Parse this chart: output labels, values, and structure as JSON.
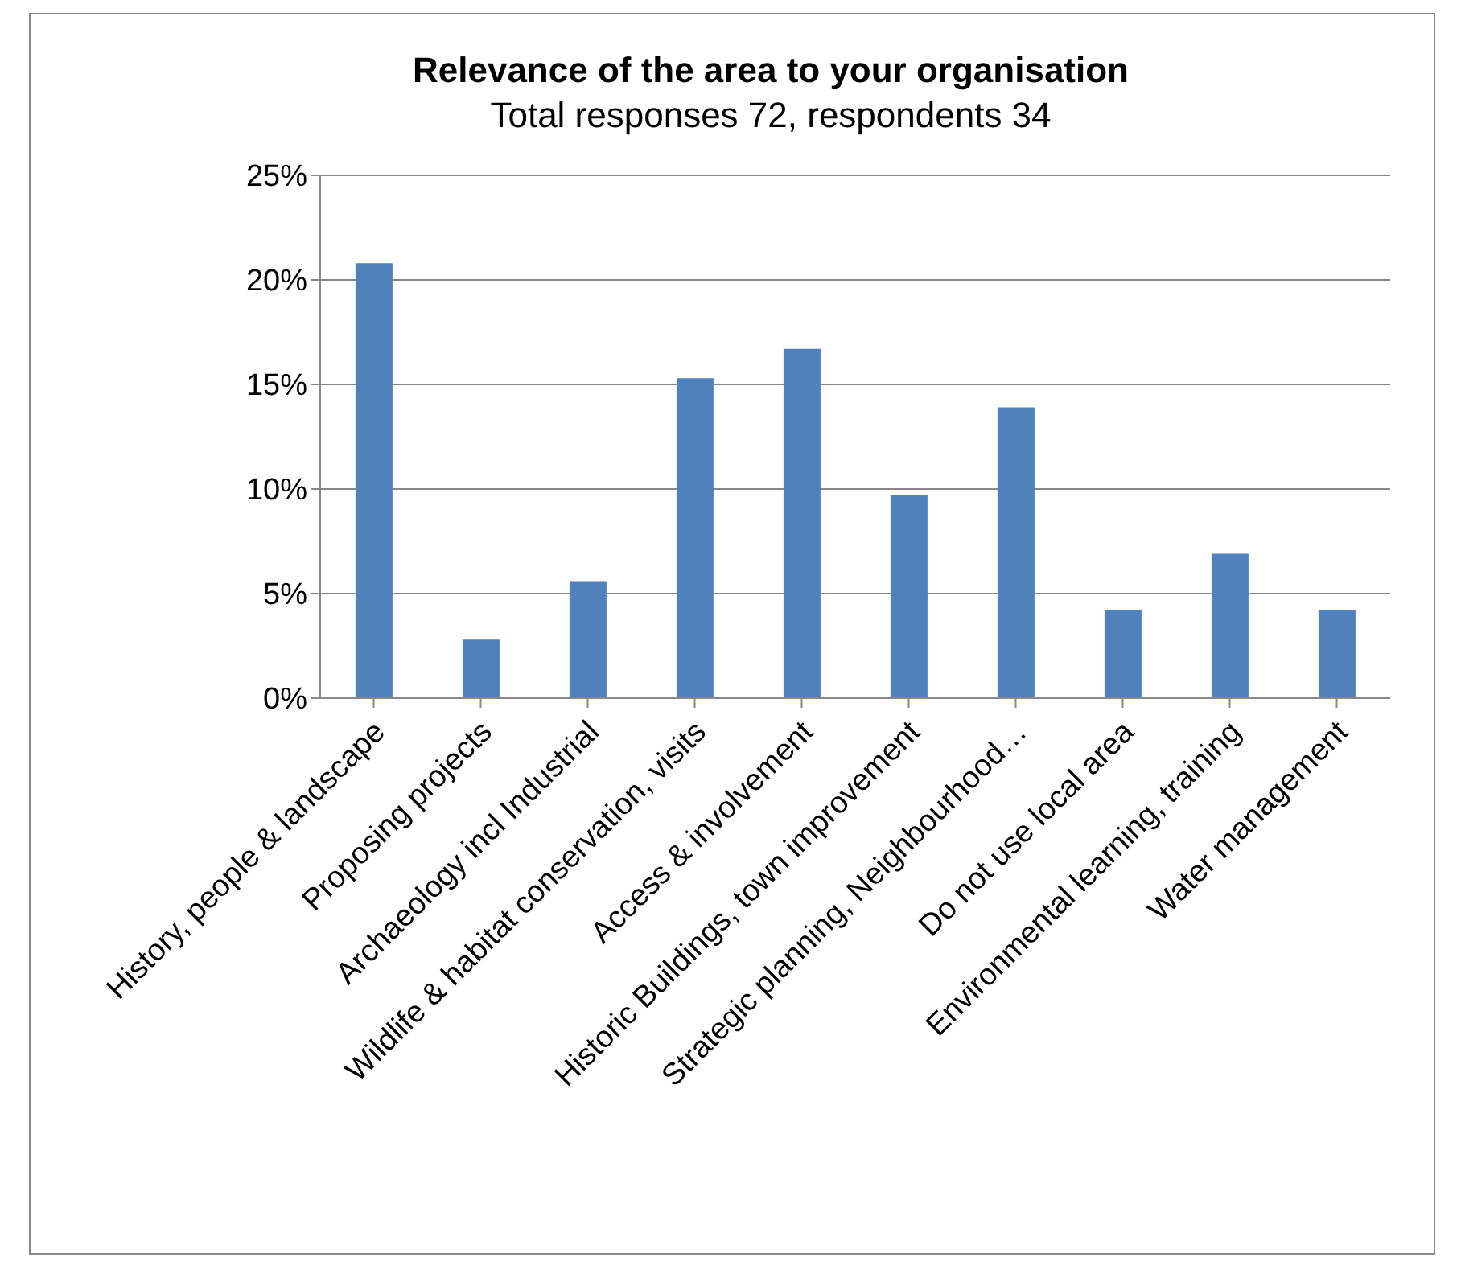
{
  "chart_data": {
    "type": "bar",
    "title": "Relevance of the area to your organisation",
    "subtitle": "Total responses 72, respondents 34",
    "categories": [
      "History,  people & landscape",
      "Proposing projects",
      "Archaeology incl Industrial",
      "Wildlife & habitat conservation, visits",
      "Access & involvement",
      "Historic Buildings, town improvement",
      "Strategic planning,  Neighbourhood…",
      "Do not use local area",
      "Environmental learning, training",
      "Water management"
    ],
    "values": [
      20.8,
      2.8,
      5.6,
      15.3,
      16.7,
      9.7,
      13.9,
      4.2,
      6.9,
      4.2
    ],
    "color": "#4f81bd",
    "ylim": [
      0,
      25
    ],
    "yticks": [
      {
        "value": 0,
        "label": "0%"
      },
      {
        "value": 5,
        "label": "5%"
      },
      {
        "value": 10,
        "label": "10%"
      },
      {
        "value": 15,
        "label": "15%"
      },
      {
        "value": 20,
        "label": "20%"
      },
      {
        "value": 25,
        "label": "25%"
      }
    ],
    "grid": "y",
    "legend": false
  }
}
